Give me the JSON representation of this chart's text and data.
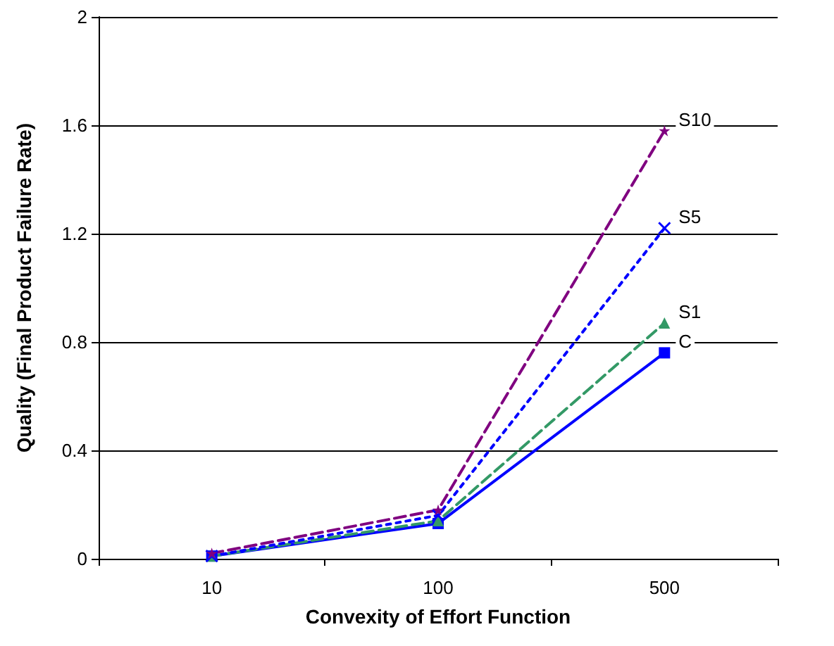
{
  "chart_data": {
    "type": "line",
    "xlabel": "Convexity of Effort Function",
    "ylabel": "Quality (Final Product Failure Rate)",
    "categories": [
      "10",
      "100",
      "500"
    ],
    "series": [
      {
        "name": "C",
        "color": "#0000ff",
        "marker": "square",
        "line_style": "solid",
        "values": [
          0.01,
          0.13,
          0.76
        ]
      },
      {
        "name": "S1",
        "color": "#339966",
        "marker": "triangle",
        "line_style": "dashed",
        "values": [
          0.01,
          0.14,
          0.87
        ]
      },
      {
        "name": "S5",
        "color": "#0000ff",
        "marker": "cross",
        "line_style": "dotted",
        "values": [
          0.01,
          0.16,
          1.22
        ]
      },
      {
        "name": "S10",
        "color": "#800080",
        "marker": "star",
        "line_style": "dashed",
        "values": [
          0.02,
          0.18,
          1.58
        ]
      }
    ],
    "ylim": [
      0,
      2
    ],
    "yticks": [
      0,
      0.4,
      0.8,
      1.2,
      1.6,
      2
    ],
    "grid": "y",
    "legend": false
  }
}
